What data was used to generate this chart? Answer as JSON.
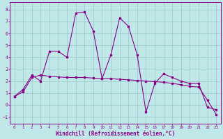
{
  "xlabel": "Windchill (Refroidissement éolien,°C)",
  "background_color": "#c0e8e8",
  "grid_color": "#a0cccc",
  "line_color": "#880088",
  "xlim": [
    -0.5,
    23.5
  ],
  "ylim": [
    -1.6,
    8.6
  ],
  "xticks": [
    0,
    1,
    2,
    3,
    4,
    5,
    6,
    7,
    8,
    9,
    10,
    11,
    12,
    13,
    14,
    15,
    16,
    17,
    18,
    19,
    20,
    21,
    22,
    23
  ],
  "yticks": [
    -1,
    0,
    1,
    2,
    3,
    4,
    5,
    6,
    7,
    8
  ],
  "series1_x": [
    0,
    1,
    2,
    3,
    4,
    5,
    6,
    7,
    8,
    9,
    10,
    11,
    12,
    13,
    14,
    15,
    16,
    17,
    18,
    19,
    20,
    21,
    22,
    23
  ],
  "series1_y": [
    0.7,
    1.3,
    2.5,
    2.0,
    4.5,
    4.5,
    4.0,
    7.7,
    7.8,
    6.2,
    2.2,
    4.2,
    7.3,
    6.6,
    4.2,
    -0.6,
    1.8,
    2.6,
    2.3,
    2.0,
    1.8,
    1.8,
    -0.2,
    -0.4
  ],
  "series2_x": [
    0,
    1,
    2,
    3,
    4,
    5,
    6,
    7,
    8,
    9,
    10,
    11,
    12,
    13,
    14,
    15,
    16,
    17,
    18,
    19,
    20,
    21,
    22,
    23
  ],
  "series2_y": [
    0.7,
    1.1,
    2.3,
    2.5,
    2.4,
    2.35,
    2.3,
    2.3,
    2.3,
    2.25,
    2.2,
    2.2,
    2.15,
    2.1,
    2.05,
    2.0,
    1.95,
    1.9,
    1.8,
    1.7,
    1.55,
    1.5,
    0.4,
    -0.8
  ]
}
